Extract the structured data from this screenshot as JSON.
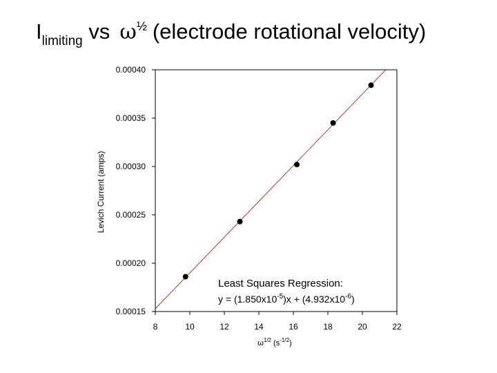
{
  "slide": {
    "title_main": "I",
    "title_sub": "limiting",
    "title_vs": " vs",
    "title_symbol": "ω",
    "title_exponent": "½",
    "title_rest": "(electrode rotational velocity)"
  },
  "chart_data": {
    "type": "scatter",
    "title": "",
    "xlabel_base": "ω",
    "xlabel_exp": "1/2",
    "xlabel_unit": " (s",
    "xlabel_unit_exp": "-1/2",
    "xlabel_close": ")",
    "ylabel": "Levich Current (amps)",
    "xlim": [
      8,
      22
    ],
    "ylim": [
      0.00015,
      0.0004
    ],
    "x_ticks": [
      8,
      10,
      12,
      14,
      16,
      18,
      20,
      22
    ],
    "x_tick_labels": [
      "8",
      "10",
      "12",
      "14",
      "16",
      "18",
      "20",
      "22"
    ],
    "y_ticks": [
      0.00015,
      0.0002,
      0.00025,
      0.0003,
      0.00035,
      0.0004
    ],
    "y_tick_labels": [
      "0.00015",
      "0.00020",
      "0.00025",
      "0.00030",
      "0.00035",
      "0.00040"
    ],
    "grid": false,
    "points": [
      {
        "x": 9.75,
        "y": 0.000186
      },
      {
        "x": 12.9,
        "y": 0.000243
      },
      {
        "x": 16.2,
        "y": 0.000302
      },
      {
        "x": 18.3,
        "y": 0.000345
      },
      {
        "x": 20.5,
        "y": 0.000384
      }
    ],
    "fit": {
      "slope": 1.85e-05,
      "intercept": 4.932e-06,
      "color": "#c0392b"
    },
    "marker_color": "#000000",
    "annotation": {
      "line1": "Least Squares Regression:",
      "line2_a": "y = (1.850x10",
      "line2_exp1": "-5",
      "line2_b": ")x + (4.932x10",
      "line2_exp2": "-6",
      "line2_c": ")"
    }
  }
}
